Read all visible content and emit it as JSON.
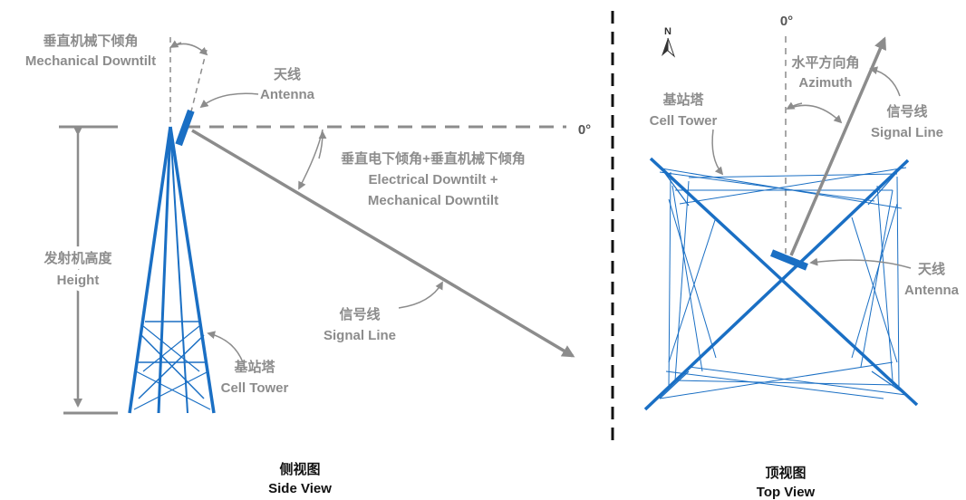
{
  "side_view": {
    "mech_downtilt_cn": "垂直机械下倾角",
    "mech_downtilt_en": "Mechanical Downtilt",
    "antenna_cn": "天线",
    "antenna_en": "Antenna",
    "zero_deg": "0°",
    "total_downtilt_cn": "垂直电下倾角+垂直机械下倾角",
    "total_downtilt_en1": "Electrical Downtilt +",
    "total_downtilt_en2": "Mechanical Downtilt",
    "height_cn": "发射机高度",
    "height_en": "Height",
    "signal_cn": "信号线",
    "signal_en": "Signal Line",
    "tower_cn": "基站塔",
    "tower_en": "Cell Tower",
    "caption_cn": "侧视图",
    "caption_en": "Side View"
  },
  "top_view": {
    "north": "N",
    "zero_deg": "0°",
    "azimuth_cn": "水平方向角",
    "azimuth_en": "Azimuth",
    "tower_cn": "基站塔",
    "tower_en": "Cell Tower",
    "signal_cn": "信号线",
    "signal_en": "Signal Line",
    "antenna_cn": "天线",
    "antenna_en": "Antenna",
    "caption_cn": "顶视图",
    "caption_en": "Top View"
  },
  "colors": {
    "tower": "#1a6fc4",
    "line": "#8c8c8c",
    "text": "#8c8c8c",
    "caption": "#111111"
  }
}
